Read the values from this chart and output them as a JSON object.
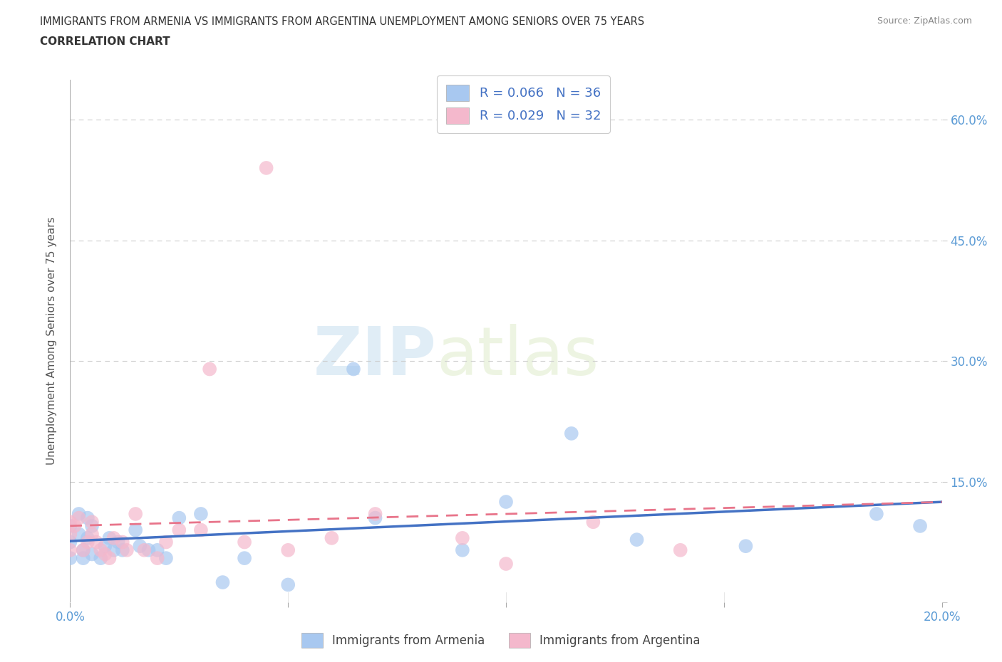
{
  "title_line1": "IMMIGRANTS FROM ARMENIA VS IMMIGRANTS FROM ARGENTINA UNEMPLOYMENT AMONG SENIORS OVER 75 YEARS",
  "title_line2": "CORRELATION CHART",
  "source": "Source: ZipAtlas.com",
  "ylabel": "Unemployment Among Seniors over 75 years",
  "watermark_zip": "ZIP",
  "watermark_atlas": "atlas",
  "xlim": [
    0.0,
    0.2
  ],
  "ylim": [
    0.0,
    0.65
  ],
  "xticks": [
    0.0,
    0.05,
    0.1,
    0.15,
    0.2
  ],
  "xtick_labels": [
    "0.0%",
    "",
    "",
    "",
    "20.0%"
  ],
  "yticks": [
    0.0,
    0.15,
    0.3,
    0.45,
    0.6
  ],
  "ytick_labels_right": [
    "",
    "15.0%",
    "30.0%",
    "45.0%",
    "60.0%"
  ],
  "armenia_color": "#a8c8f0",
  "argentina_color": "#f4b8cc",
  "armenia_line_color": "#4472c4",
  "argentina_line_color": "#e8748a",
  "title_color": "#404040",
  "axis_color": "#5b9bd5",
  "legend_text_color": "#4472c4",
  "grid_color": "#cccccc",
  "R_armenia": 0.066,
  "N_armenia": 36,
  "R_argentina": 0.029,
  "N_argentina": 32,
  "armenia_scatter_x": [
    0.0,
    0.0,
    0.0,
    0.002,
    0.002,
    0.003,
    0.003,
    0.004,
    0.004,
    0.005,
    0.005,
    0.007,
    0.008,
    0.009,
    0.01,
    0.011,
    0.012,
    0.015,
    0.016,
    0.018,
    0.02,
    0.022,
    0.025,
    0.03,
    0.035,
    0.04,
    0.05,
    0.065,
    0.07,
    0.09,
    0.1,
    0.115,
    0.13,
    0.155,
    0.185,
    0.195
  ],
  "armenia_scatter_y": [
    0.095,
    0.075,
    0.055,
    0.11,
    0.085,
    0.065,
    0.055,
    0.105,
    0.08,
    0.095,
    0.06,
    0.055,
    0.07,
    0.08,
    0.065,
    0.075,
    0.065,
    0.09,
    0.07,
    0.065,
    0.065,
    0.055,
    0.105,
    0.11,
    0.025,
    0.055,
    0.022,
    0.29,
    0.105,
    0.065,
    0.125,
    0.21,
    0.078,
    0.07,
    0.11,
    0.095
  ],
  "argentina_scatter_x": [
    0.0,
    0.0,
    0.0,
    0.001,
    0.002,
    0.003,
    0.004,
    0.005,
    0.005,
    0.006,
    0.007,
    0.008,
    0.009,
    0.01,
    0.012,
    0.013,
    0.015,
    0.017,
    0.02,
    0.022,
    0.025,
    0.03,
    0.032,
    0.04,
    0.045,
    0.05,
    0.06,
    0.07,
    0.09,
    0.1,
    0.12,
    0.14
  ],
  "argentina_scatter_y": [
    0.1,
    0.085,
    0.065,
    0.095,
    0.105,
    0.065,
    0.075,
    0.085,
    0.1,
    0.075,
    0.065,
    0.06,
    0.055,
    0.08,
    0.075,
    0.065,
    0.11,
    0.065,
    0.055,
    0.075,
    0.09,
    0.09,
    0.29,
    0.075,
    0.54,
    0.065,
    0.08,
    0.11,
    0.08,
    0.048,
    0.1,
    0.065
  ],
  "legend_label_armenia": "Immigrants from Armenia",
  "legend_label_argentina": "Immigrants from Argentina"
}
